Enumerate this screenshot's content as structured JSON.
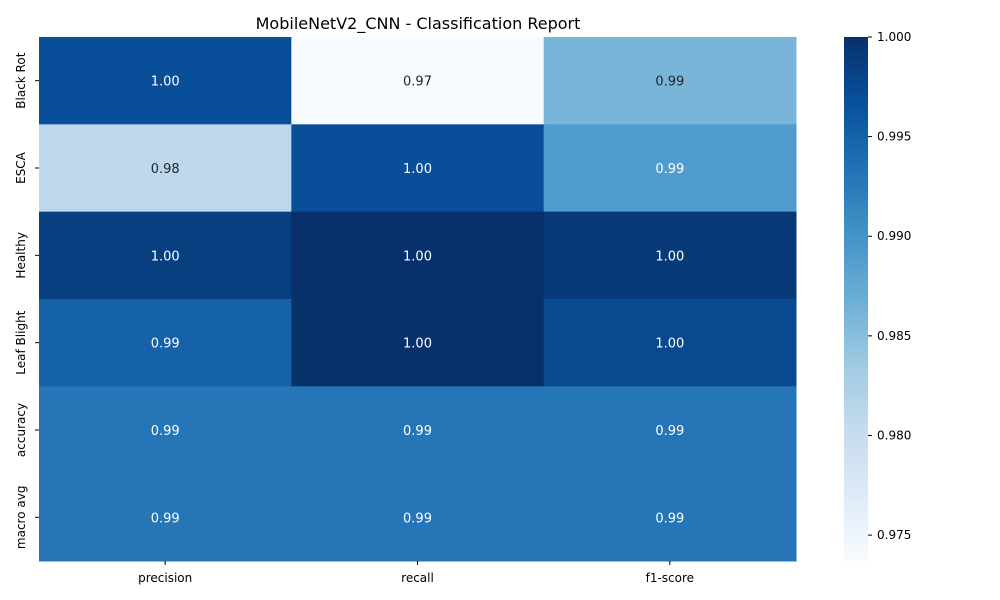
{
  "chart_data": {
    "type": "heatmap",
    "title": "MobileNetV2_CNN - Classification Report",
    "xlabel": "",
    "ylabel": "",
    "columns": [
      "precision",
      "recall",
      "f1-score"
    ],
    "rows": [
      "Black Rot",
      "ESCA",
      "Healthy",
      "Leaf Blight",
      "accuracy",
      "macro avg"
    ],
    "values": [
      [
        0.997,
        0.9737,
        0.986
      ],
      [
        0.981,
        0.997,
        0.989
      ],
      [
        0.9985,
        1.0,
        0.999
      ],
      [
        0.995,
        1.0,
        0.9975
      ],
      [
        0.993,
        0.993,
        0.993
      ],
      [
        0.993,
        0.993,
        0.993
      ]
    ],
    "annotations": [
      [
        "1.00",
        "0.97",
        "0.99"
      ],
      [
        "0.98",
        "1.00",
        "0.99"
      ],
      [
        "1.00",
        "1.00",
        "1.00"
      ],
      [
        "0.99",
        "1.00",
        "1.00"
      ],
      [
        "0.99",
        "0.99",
        "0.99"
      ],
      [
        "0.99",
        "0.99",
        "0.99"
      ]
    ],
    "colormap": "Blues",
    "colorbar": {
      "range": [
        0.9737,
        1.0
      ],
      "ticks": [
        0.975,
        0.98,
        0.985,
        0.99,
        0.995,
        1.0
      ],
      "tick_labels": [
        "0.975",
        "0.980",
        "0.985",
        "0.990",
        "0.995",
        "1.000"
      ]
    }
  }
}
